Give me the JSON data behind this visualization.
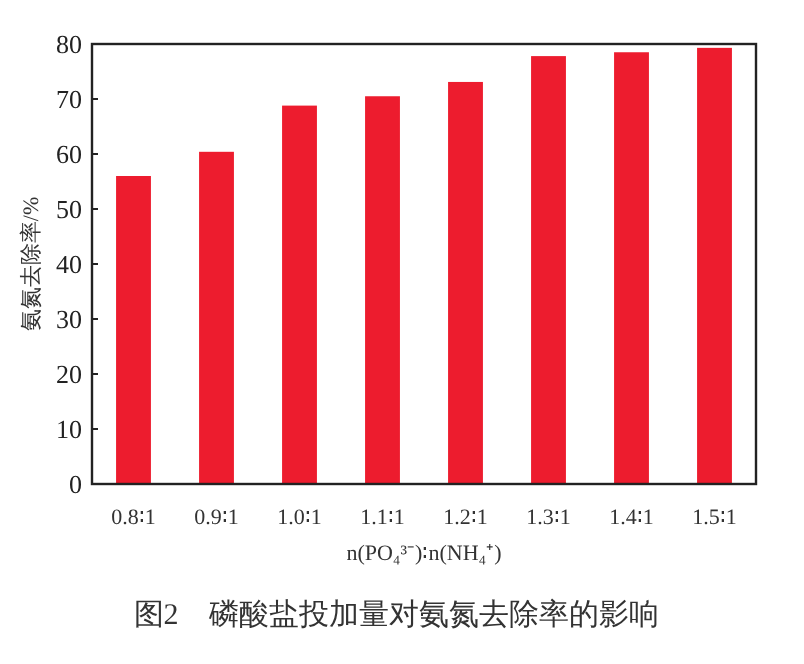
{
  "chart_data": {
    "type": "bar",
    "ylabel": "氨氮去除率/%",
    "xlabel": "n(PO₄³⁻)∶n(NH₄⁺)",
    "categories": [
      "0.8∶1",
      "0.9∶1",
      "1.0∶1",
      "1.1∶1",
      "1.2∶1",
      "1.3∶1",
      "1.4∶1",
      "1.5∶1"
    ],
    "values": [
      56.0,
      60.4,
      68.8,
      70.5,
      73.1,
      77.8,
      78.5,
      79.3
    ],
    "color": "#ed1c2e",
    "ylim": [
      0,
      80
    ],
    "yticks": [
      0,
      10,
      20,
      30,
      40,
      50,
      60,
      70,
      80
    ],
    "grid": false,
    "annotations": [
      "图2　磷酸盐投加量对氨氮去除率的影响"
    ]
  }
}
